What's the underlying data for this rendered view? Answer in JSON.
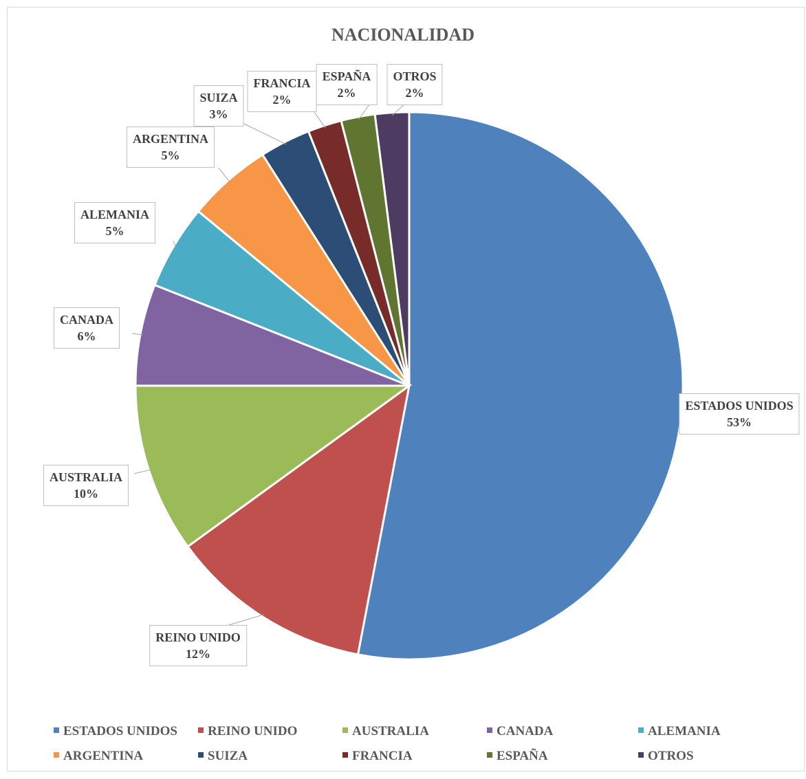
{
  "chart_data": {
    "type": "pie",
    "title": "NACIONALIDAD",
    "categories": [
      "ESTADOS UNIDOS",
      "REINO UNIDO",
      "AUSTRALIA",
      "CANADA",
      "ALEMANIA",
      "ARGENTINA",
      "SUIZA",
      "FRANCIA",
      "ESPAÑA",
      "OTROS"
    ],
    "values": [
      53,
      12,
      10,
      6,
      5,
      5,
      3,
      2,
      2,
      2
    ],
    "labels": [
      "53%",
      "12%",
      "10%",
      "6%",
      "5%",
      "5%",
      "3%",
      "2%",
      "2%",
      "2%"
    ],
    "colors": [
      "#4f81bd",
      "#c0504d",
      "#9bbb59",
      "#8064a2",
      "#4bacc6",
      "#f79646",
      "#2c4d75",
      "#772c2a",
      "#5f7530",
      "#4d3b62"
    ],
    "legend_position": "bottom"
  }
}
